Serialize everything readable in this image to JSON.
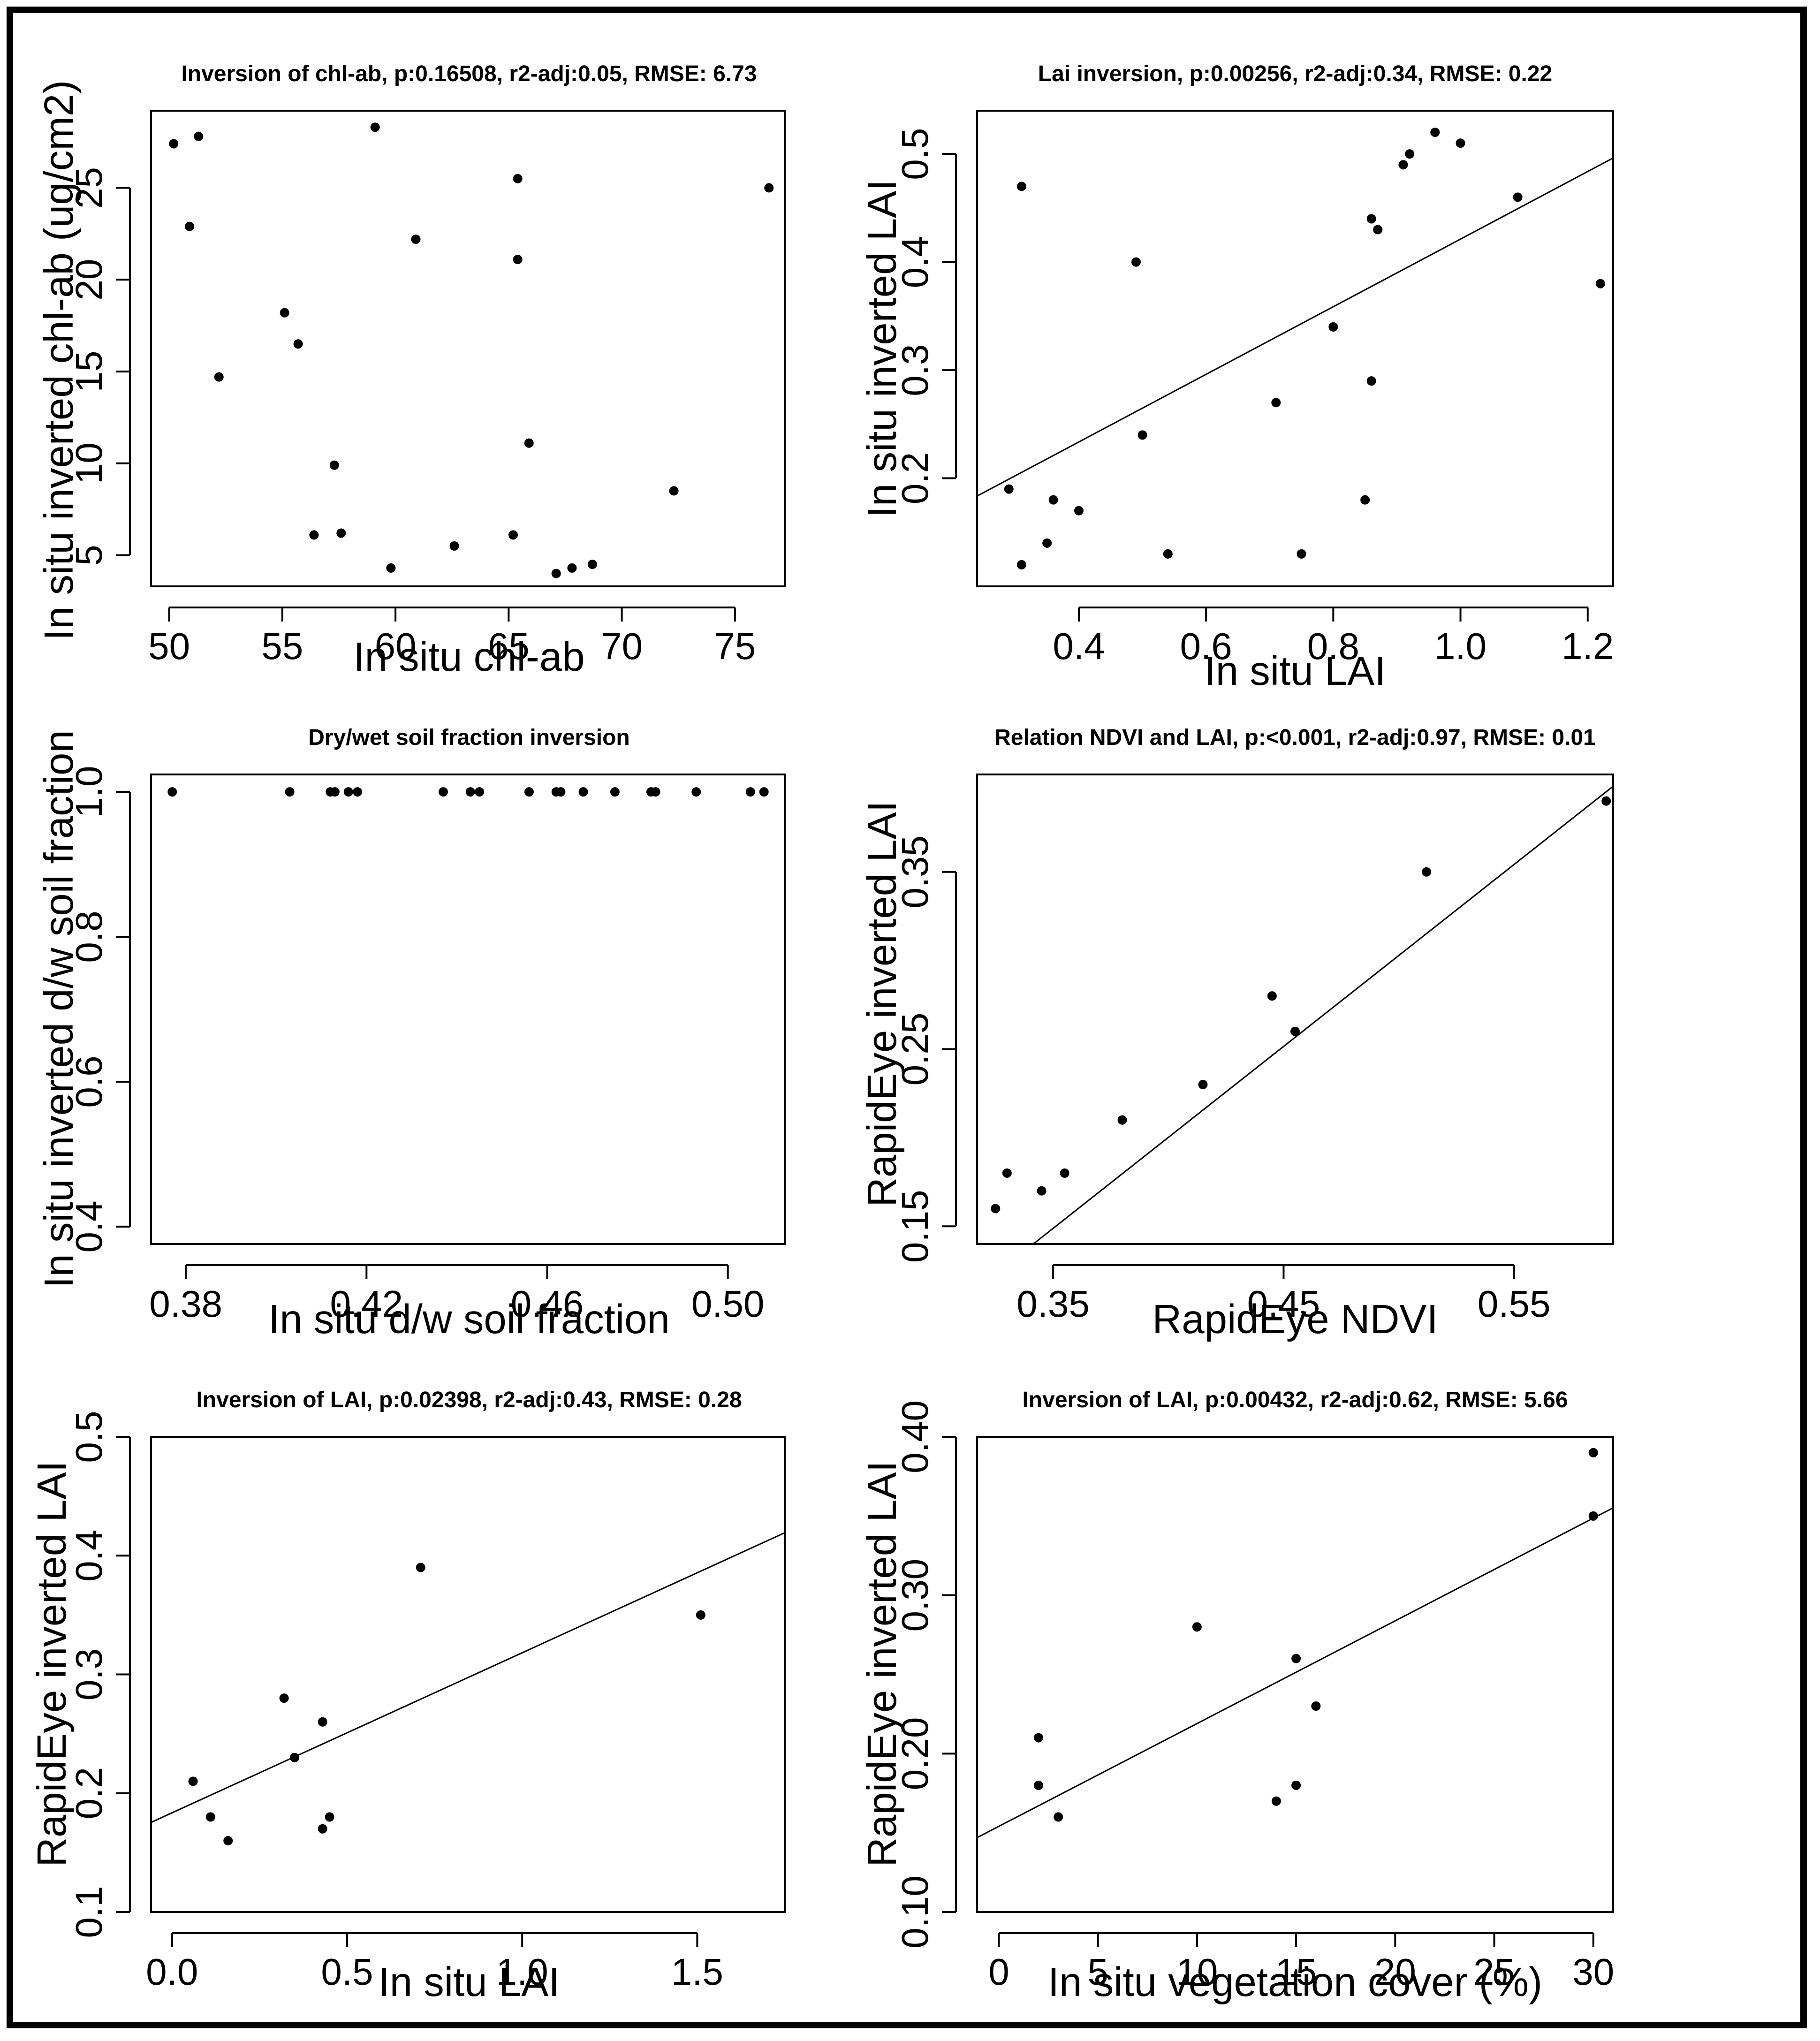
{
  "chart_data": [
    {
      "type": "scatter",
      "title": "Inversion of chl-ab, p:0.16508, r2-adj:0.05, RMSE: 6.73",
      "xlabel": "In situ chl-ab",
      "ylabel": "In situ inverted chl-ab (ug/cm2)",
      "xlim": [
        49.2,
        77.2
      ],
      "ylim": [
        3.3,
        29.2
      ],
      "xticks": [
        50,
        55,
        60,
        65,
        70,
        75
      ],
      "xtick_labels": [
        "50",
        "55",
        "60",
        "65",
        "70",
        "75"
      ],
      "yticks": [
        5,
        10,
        15,
        20,
        25
      ],
      "ytick_labels": [
        "5",
        "10",
        "15",
        "20",
        "25"
      ],
      "points": [
        [
          50.2,
          27.4
        ],
        [
          51.3,
          27.8
        ],
        [
          50.9,
          22.9
        ],
        [
          52.2,
          14.7
        ],
        [
          55.1,
          18.2
        ],
        [
          55.7,
          16.5
        ],
        [
          56.4,
          6.1
        ],
        [
          57.3,
          9.9
        ],
        [
          57.6,
          6.2
        ],
        [
          59.1,
          28.3
        ],
        [
          59.8,
          4.3
        ],
        [
          60.9,
          22.2
        ],
        [
          62.6,
          5.5
        ],
        [
          65.2,
          6.1
        ],
        [
          65.4,
          25.5
        ],
        [
          65.4,
          21.1
        ],
        [
          65.9,
          11.1
        ],
        [
          67.1,
          4.0
        ],
        [
          67.8,
          4.3
        ],
        [
          68.7,
          4.5
        ],
        [
          72.3,
          8.5
        ],
        [
          76.5,
          25.0
        ]
      ]
    },
    {
      "type": "scatter",
      "title": "Lai inversion, p:0.00256, r2-adj:0.34, RMSE: 0.22",
      "xlabel": "In situ LAI",
      "ylabel": "In situ inverted LAI",
      "xlim": [
        0.24,
        1.24
      ],
      "ylim": [
        0.1,
        0.54
      ],
      "xticks": [
        0.4,
        0.6,
        0.8,
        1.0,
        1.2
      ],
      "xtick_labels": [
        "0.4",
        "0.6",
        "0.8",
        "1.0",
        "1.2"
      ],
      "yticks": [
        0.2,
        0.3,
        0.4,
        0.5
      ],
      "ytick_labels": [
        "0.2",
        "0.3",
        "0.4",
        "0.5"
      ],
      "points": [
        [
          0.29,
          0.19
        ],
        [
          0.31,
          0.12
        ],
        [
          0.31,
          0.47
        ],
        [
          0.35,
          0.14
        ],
        [
          0.36,
          0.18
        ],
        [
          0.4,
          0.17
        ],
        [
          0.49,
          0.4
        ],
        [
          0.5,
          0.24
        ],
        [
          0.54,
          0.13
        ],
        [
          0.71,
          0.27
        ],
        [
          0.75,
          0.13
        ],
        [
          0.8,
          0.34
        ],
        [
          0.85,
          0.18
        ],
        [
          0.86,
          0.29
        ],
        [
          0.86,
          0.44
        ],
        [
          0.87,
          0.43
        ],
        [
          0.91,
          0.49
        ],
        [
          0.92,
          0.5
        ],
        [
          0.96,
          0.52
        ],
        [
          1.0,
          0.51
        ],
        [
          1.09,
          0.46
        ],
        [
          1.22,
          0.38
        ]
      ],
      "fit_line": {
        "intercept": 0.1085,
        "slope": 0.3127
      }
    },
    {
      "type": "scatter",
      "title": "Dry/wet soil fraction inversion",
      "xlabel": "In situ d/w soil fraction",
      "ylabel": "In situ inverted d/w soil fraction",
      "xlim": [
        0.3723,
        0.5126
      ],
      "ylim": [
        0.376,
        1.024
      ],
      "xticks": [
        0.38,
        0.42,
        0.46,
        0.5
      ],
      "xtick_labels": [
        "0.38",
        "0.42",
        "0.46",
        "0.50"
      ],
      "yticks": [
        0.4,
        0.6,
        0.8,
        1.0
      ],
      "ytick_labels": [
        "0.4",
        "0.6",
        "0.8",
        "1.0"
      ],
      "points": [
        [
          0.377,
          1.0
        ],
        [
          0.403,
          1.0
        ],
        [
          0.412,
          1.0
        ],
        [
          0.413,
          1.0
        ],
        [
          0.416,
          1.0
        ],
        [
          0.418,
          1.0
        ],
        [
          0.437,
          1.0
        ],
        [
          0.443,
          1.0
        ],
        [
          0.445,
          1.0
        ],
        [
          0.456,
          1.0
        ],
        [
          0.462,
          1.0
        ],
        [
          0.463,
          1.0
        ],
        [
          0.468,
          1.0
        ],
        [
          0.475,
          1.0
        ],
        [
          0.483,
          1.0
        ],
        [
          0.484,
          1.0
        ],
        [
          0.493,
          1.0
        ],
        [
          0.505,
          1.0
        ],
        [
          0.508,
          1.0
        ]
      ]
    },
    {
      "type": "scatter",
      "title": "Relation NDVI and LAI, p:<0.001, r2-adj:0.97, RMSE: 0.01",
      "xlabel": "RapidEye NDVI",
      "ylabel": "RapidEye inverted LAI",
      "xlim": [
        0.317,
        0.593
      ],
      "ylim": [
        0.14,
        0.405
      ],
      "xticks": [
        0.35,
        0.45,
        0.55
      ],
      "xtick_labels": [
        "0.35",
        "0.45",
        "0.55"
      ],
      "yticks": [
        0.15,
        0.25,
        0.35
      ],
      "ytick_labels": [
        "0.15",
        "0.25",
        "0.35"
      ],
      "points": [
        [
          0.325,
          0.16
        ],
        [
          0.33,
          0.18
        ],
        [
          0.345,
          0.17
        ],
        [
          0.355,
          0.18
        ],
        [
          0.38,
          0.21
        ],
        [
          0.415,
          0.23
        ],
        [
          0.445,
          0.28
        ],
        [
          0.455,
          0.26
        ],
        [
          0.512,
          0.35
        ],
        [
          0.59,
          0.39
        ]
      ],
      "fit_line": {
        "intercept": -0.2105,
        "slope": 1.0267
      }
    },
    {
      "type": "scatter",
      "title": "Inversion of LAI, p:0.02398, r2-adj:0.43, RMSE: 0.28",
      "xlabel": "In situ LAI",
      "ylabel": "RapidEye inverted LAI",
      "xlim": [
        -0.06,
        1.75
      ],
      "ylim": [
        0.1,
        0.5
      ],
      "xticks": [
        0.0,
        0.5,
        1.0,
        1.5
      ],
      "xtick_labels": [
        "0.0",
        "0.5",
        "1.0",
        "1.5"
      ],
      "yticks": [
        0.1,
        0.2,
        0.3,
        0.4,
        0.5
      ],
      "ytick_labels": [
        "0.1",
        "0.2",
        "0.3",
        "0.4",
        "0.5"
      ],
      "points": [
        [
          0.06,
          0.21
        ],
        [
          0.11,
          0.18
        ],
        [
          0.16,
          0.16
        ],
        [
          0.32,
          0.28
        ],
        [
          0.35,
          0.23
        ],
        [
          0.43,
          0.26
        ],
        [
          0.43,
          0.17
        ],
        [
          0.45,
          0.18
        ],
        [
          0.71,
          0.39
        ],
        [
          1.51,
          0.35
        ]
      ],
      "fit_line": {
        "intercept": 0.1835,
        "slope": 0.1347
      }
    },
    {
      "type": "scatter",
      "title": "Inversion of LAI, p:0.00432, r2-adj:0.62, RMSE: 5.66",
      "xlabel": "In situ vegetation cover (%)",
      "ylabel": "RapidEye inverted LAI",
      "xlim": [
        -1.1,
        31.0
      ],
      "ylim": [
        0.1,
        0.4
      ],
      "xticks": [
        0,
        5,
        10,
        15,
        20,
        25,
        30
      ],
      "xtick_labels": [
        "0",
        "5",
        "10",
        "15",
        "20",
        "25",
        "30"
      ],
      "yticks": [
        0.1,
        0.2,
        0.3,
        0.4
      ],
      "ytick_labels": [
        "0.10",
        "0.20",
        "0.30",
        "0.40"
      ],
      "points": [
        [
          2,
          0.21
        ],
        [
          2,
          0.18
        ],
        [
          3,
          0.16
        ],
        [
          10,
          0.28
        ],
        [
          14,
          0.17
        ],
        [
          15,
          0.26
        ],
        [
          15,
          0.18
        ],
        [
          16,
          0.23
        ],
        [
          30,
          0.39
        ],
        [
          30,
          0.35
        ]
      ],
      "fit_line": {
        "intercept": 0.1541,
        "slope": 0.006486
      }
    }
  ]
}
